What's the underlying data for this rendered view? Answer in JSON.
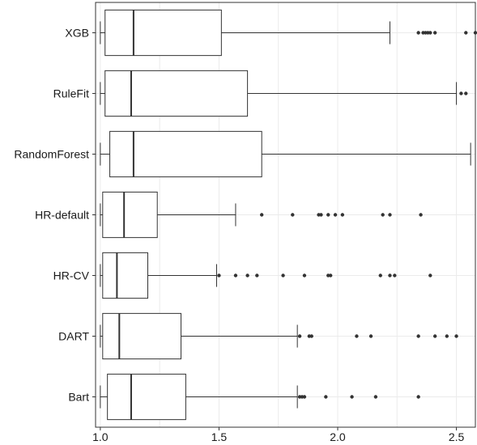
{
  "chart_data": {
    "type": "boxplot",
    "orientation": "horizontal",
    "title": "",
    "xlabel": "",
    "ylabel": "",
    "xlim": [
      0.98,
      2.58
    ],
    "x_ticks": [
      1.0,
      1.5,
      2.0,
      2.5
    ],
    "x_tick_labels": [
      "1.0",
      "1.5",
      "2.0",
      "2.5"
    ],
    "grid": true,
    "categories": [
      "XGB",
      "RuleFit",
      "RandomForest",
      "HR-default",
      "HR-CV",
      "DART",
      "Bart"
    ],
    "boxes": [
      {
        "category": "XGB",
        "whisker_low": 1.0,
        "q1": 1.02,
        "median": 1.14,
        "q3": 1.51,
        "whisker_high": 2.22,
        "outliers": [
          2.34,
          2.36,
          2.37,
          2.38,
          2.39,
          2.41,
          2.54,
          2.58
        ]
      },
      {
        "category": "RuleFit",
        "whisker_low": 1.0,
        "q1": 1.02,
        "median": 1.13,
        "q3": 1.62,
        "whisker_high": 2.5,
        "outliers": [
          2.52,
          2.54
        ]
      },
      {
        "category": "RandomForest",
        "whisker_low": 1.0,
        "q1": 1.04,
        "median": 1.14,
        "q3": 1.68,
        "whisker_high": 2.56,
        "outliers": []
      },
      {
        "category": "HR-default",
        "whisker_low": 1.0,
        "q1": 1.01,
        "median": 1.1,
        "q3": 1.24,
        "whisker_high": 1.57,
        "outliers": [
          1.68,
          1.81,
          1.92,
          1.93,
          1.96,
          1.99,
          2.02,
          2.19,
          2.22,
          2.35
        ]
      },
      {
        "category": "HR-CV",
        "whisker_low": 1.0,
        "q1": 1.01,
        "median": 1.07,
        "q3": 1.2,
        "whisker_high": 1.49,
        "outliers": [
          1.5,
          1.57,
          1.62,
          1.66,
          1.77,
          1.86,
          1.96,
          1.97,
          2.18,
          2.22,
          2.24,
          2.39
        ]
      },
      {
        "category": "DART",
        "whisker_low": 1.0,
        "q1": 1.01,
        "median": 1.08,
        "q3": 1.34,
        "whisker_high": 1.83,
        "outliers": [
          1.84,
          1.88,
          1.89,
          2.08,
          2.14,
          2.34,
          2.41,
          2.46,
          2.5
        ]
      },
      {
        "category": "Bart",
        "whisker_low": 1.0,
        "q1": 1.03,
        "median": 1.13,
        "q3": 1.36,
        "whisker_high": 1.83,
        "outliers": [
          1.84,
          1.85,
          1.86,
          1.95,
          2.06,
          2.16,
          2.34
        ]
      }
    ]
  }
}
